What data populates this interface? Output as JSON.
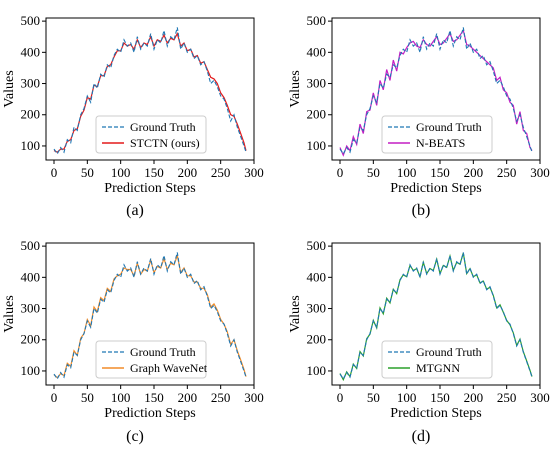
{
  "ground_truth_color": "#1f77b4",
  "panels": [
    {
      "caption": "(a)",
      "model_label": "STCTN (ours)",
      "model_color": "#e31a1c",
      "seed": 11,
      "noise": 10
    },
    {
      "caption": "(b)",
      "model_label": "N-BEATS",
      "model_color": "#c41fc4",
      "seed": 23,
      "noise": 22
    },
    {
      "caption": "(c)",
      "model_label": "Graph WaveNet",
      "model_color": "#f28c28",
      "seed": 37,
      "noise": 18
    },
    {
      "caption": "(d)",
      "model_label": "MTGNN",
      "model_color": "#2ca02c",
      "seed": 53,
      "noise": 20
    }
  ],
  "chart_data": [
    {
      "type": "line",
      "xlabel": "Prediction Steps",
      "ylabel": "Values",
      "xlim": [
        -12,
        300
      ],
      "ylim": [
        55,
        510
      ],
      "xticks": [
        0,
        50,
        100,
        150,
        200,
        250,
        300
      ],
      "yticks": [
        100,
        200,
        300,
        400,
        500
      ],
      "legend_position": "lower-center",
      "series": [
        {
          "name": "Ground Truth",
          "style": "dashed",
          "x": [
            0,
            5,
            10,
            15,
            20,
            25,
            30,
            35,
            40,
            45,
            50,
            55,
            60,
            65,
            70,
            75,
            80,
            85,
            90,
            95,
            100,
            105,
            110,
            115,
            120,
            125,
            130,
            135,
            140,
            145,
            150,
            155,
            160,
            165,
            170,
            175,
            180,
            185,
            190,
            195,
            200,
            205,
            210,
            215,
            220,
            225,
            230,
            235,
            240,
            245,
            250,
            255,
            260,
            265,
            270,
            275,
            280,
            285,
            288
          ],
          "values": [
            90,
            75,
            95,
            80,
            120,
            110,
            160,
            150,
            200,
            220,
            260,
            240,
            300,
            285,
            330,
            320,
            360,
            350,
            390,
            410,
            400,
            440,
            420,
            430,
            400,
            450,
            410,
            430,
            420,
            460,
            410,
            440,
            430,
            470,
            420,
            450,
            440,
            480,
            410,
            430,
            400,
            410,
            380,
            390,
            360,
            370,
            340,
            300,
            310,
            290,
            260,
            250,
            220,
            180,
            200,
            160,
            130,
            100,
            80
          ]
        },
        {
          "name": "STCTN (ours)",
          "style": "solid",
          "x": [
            0,
            5,
            10,
            15,
            20,
            25,
            30,
            35,
            40,
            45,
            50,
            55,
            60,
            65,
            70,
            75,
            80,
            85,
            90,
            95,
            100,
            105,
            110,
            115,
            120,
            125,
            130,
            135,
            140,
            145,
            150,
            155,
            160,
            165,
            170,
            175,
            180,
            185,
            190,
            195,
            200,
            205,
            210,
            215,
            220,
            225,
            230,
            235,
            240,
            245,
            250,
            255,
            260,
            265,
            270,
            275,
            280,
            285,
            288
          ],
          "values": [
            85,
            80,
            90,
            90,
            115,
            120,
            150,
            155,
            195,
            215,
            255,
            250,
            295,
            290,
            325,
            325,
            355,
            360,
            385,
            405,
            405,
            430,
            420,
            425,
            410,
            440,
            415,
            430,
            425,
            450,
            420,
            440,
            435,
            455,
            430,
            445,
            440,
            460,
            420,
            430,
            405,
            410,
            385,
            390,
            365,
            370,
            345,
            320,
            315,
            300,
            270,
            255,
            230,
            200,
            195,
            170,
            140,
            110,
            85
          ]
        },
        {
          "name": "N-BEATS",
          "style": "solid",
          "x": [
            0,
            5,
            10,
            15,
            20,
            25,
            30,
            35,
            40,
            45,
            50,
            55,
            60,
            65,
            70,
            75,
            80,
            85,
            90,
            95,
            100,
            105,
            110,
            115,
            120,
            125,
            130,
            135,
            140,
            145,
            150,
            155,
            160,
            165,
            170,
            175,
            180,
            185,
            190,
            195,
            200,
            205,
            210,
            215,
            220,
            225,
            230,
            235,
            240,
            245,
            250,
            255,
            260,
            265,
            270,
            275,
            280,
            285,
            288
          ],
          "values": [
            95,
            70,
            100,
            85,
            130,
            105,
            170,
            140,
            210,
            215,
            270,
            230,
            310,
            280,
            345,
            310,
            375,
            340,
            400,
            395,
            415,
            430,
            435,
            420,
            415,
            440,
            425,
            420,
            435,
            450,
            425,
            430,
            445,
            460,
            435,
            440,
            455,
            470,
            425,
            420,
            410,
            400,
            390,
            380,
            370,
            360,
            350,
            310,
            320,
            280,
            270,
            240,
            230,
            170,
            210,
            150,
            140,
            95,
            85
          ]
        },
        {
          "name": "Graph WaveNet",
          "style": "solid",
          "x": [
            0,
            5,
            10,
            15,
            20,
            25,
            30,
            35,
            40,
            45,
            50,
            55,
            60,
            65,
            70,
            75,
            80,
            85,
            90,
            95,
            100,
            105,
            110,
            115,
            120,
            125,
            130,
            135,
            140,
            145,
            150,
            155,
            160,
            165,
            170,
            175,
            180,
            185,
            190,
            195,
            200,
            205,
            210,
            215,
            220,
            225,
            230,
            235,
            240,
            245,
            250,
            255,
            260,
            265,
            270,
            275,
            280,
            285,
            288
          ],
          "values": [
            88,
            78,
            92,
            85,
            125,
            115,
            165,
            150,
            205,
            220,
            265,
            245,
            305,
            290,
            335,
            325,
            365,
            355,
            395,
            405,
            410,
            430,
            425,
            425,
            405,
            445,
            410,
            425,
            420,
            455,
            415,
            435,
            430,
            460,
            425,
            445,
            440,
            470,
            415,
            430,
            405,
            405,
            385,
            385,
            365,
            365,
            345,
            305,
            315,
            295,
            265,
            250,
            225,
            185,
            200,
            165,
            135,
            105,
            82
          ]
        },
        {
          "name": "MTGNN",
          "style": "solid",
          "x": [
            0,
            5,
            10,
            15,
            20,
            25,
            30,
            35,
            40,
            45,
            50,
            55,
            60,
            65,
            70,
            75,
            80,
            85,
            90,
            95,
            100,
            105,
            110,
            115,
            120,
            125,
            130,
            135,
            140,
            145,
            150,
            155,
            160,
            165,
            170,
            175,
            180,
            185,
            190,
            195,
            200,
            205,
            210,
            215,
            220,
            225,
            230,
            235,
            240,
            245,
            250,
            255,
            260,
            265,
            270,
            275,
            280,
            285,
            288
          ],
          "values": [
            92,
            72,
            97,
            82,
            122,
            108,
            162,
            148,
            203,
            218,
            262,
            238,
            302,
            283,
            333,
            318,
            362,
            348,
            392,
            408,
            402,
            438,
            422,
            428,
            402,
            448,
            412,
            428,
            422,
            458,
            412,
            438,
            432,
            468,
            422,
            448,
            442,
            478,
            412,
            428,
            402,
            408,
            382,
            388,
            362,
            368,
            342,
            302,
            312,
            288,
            262,
            248,
            222,
            182,
            202,
            162,
            132,
            102,
            82
          ]
        }
      ]
    }
  ]
}
